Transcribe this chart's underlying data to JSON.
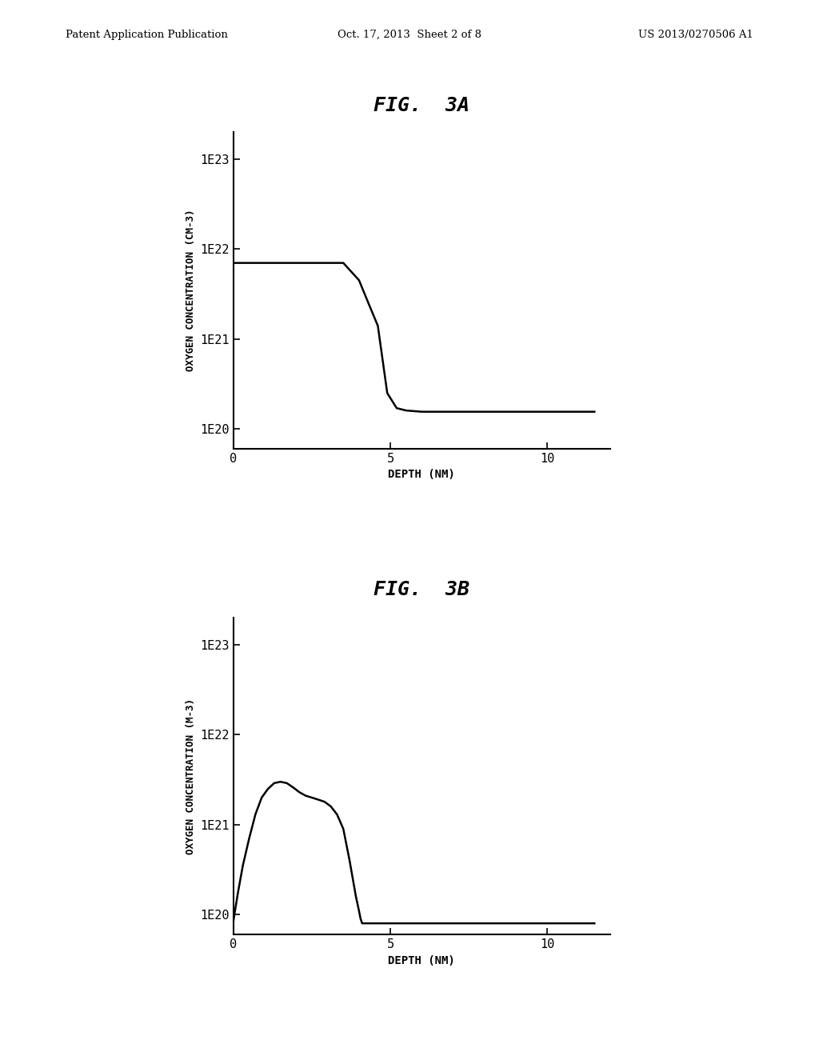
{
  "fig_width": 10.24,
  "fig_height": 13.2,
  "background_color": "#ffffff",
  "header_left": "Patent Application Publication",
  "header_mid": "Oct. 17, 2013  Sheet 2 of 8",
  "header_right": "US 2013/0270506 A1",
  "fig3a_title": "FIG.  3A",
  "fig3b_title": "FIG.  3B",
  "fig3a_ylabel": "OXYGEN CONCENTRATION (CM-3)",
  "fig3b_ylabel": "OXYGEN CONCENTRATION (M-3)",
  "xlabel": "DEPTH (NM)",
  "yticks": [
    1e+20,
    1e+21,
    1e+22,
    1e+23
  ],
  "ytick_labels": [
    "1E20",
    "1E21",
    "1E22",
    "1E23"
  ],
  "xticks": [
    0,
    5,
    10
  ],
  "xlim": [
    0,
    12
  ],
  "ylim_log": [
    6e+19,
    2e+23
  ],
  "fig3a_x": [
    0,
    3.5,
    3.5,
    4.0,
    4.3,
    4.6,
    4.9,
    5.2,
    5.5,
    6.0,
    7.0,
    11.5
  ],
  "fig3a_y": [
    7e+21,
    7e+21,
    7e+21,
    4.5e+21,
    2.5e+21,
    1.4e+21,
    2.5e+20,
    1.7e+20,
    1.6e+20,
    1.55e+20,
    1.55e+20,
    1.55e+20
  ],
  "fig3b_x": [
    0.0,
    0.05,
    0.15,
    0.3,
    0.5,
    0.7,
    0.9,
    1.1,
    1.3,
    1.5,
    1.7,
    1.9,
    2.1,
    2.3,
    2.5,
    2.7,
    2.9,
    3.1,
    3.3,
    3.5,
    3.7,
    3.9,
    4.0,
    4.05,
    4.1,
    4.15,
    4.2,
    5.0,
    6.0,
    7.0,
    8.0,
    9.0,
    11.5
  ],
  "fig3b_y": [
    8.5e+19,
    1.1e+20,
    1.8e+20,
    3.5e+20,
    7e+20,
    1.3e+21,
    2e+21,
    2.5e+21,
    2.9e+21,
    3e+21,
    2.9e+21,
    2.6e+21,
    2.3e+21,
    2.1e+21,
    2e+21,
    1.9e+21,
    1.8e+21,
    1.6e+21,
    1.3e+21,
    9e+20,
    4e+20,
    1.6e+20,
    1.1e+20,
    9e+19,
    8e+19,
    8e+19,
    8e+19,
    8e+19,
    8e+19,
    8e+19,
    8e+19,
    8e+19,
    8e+19
  ],
  "line_color": "#000000",
  "line_width": 1.8,
  "tick_fontsize": 11,
  "label_fontsize": 10,
  "title_fontsize": 18
}
